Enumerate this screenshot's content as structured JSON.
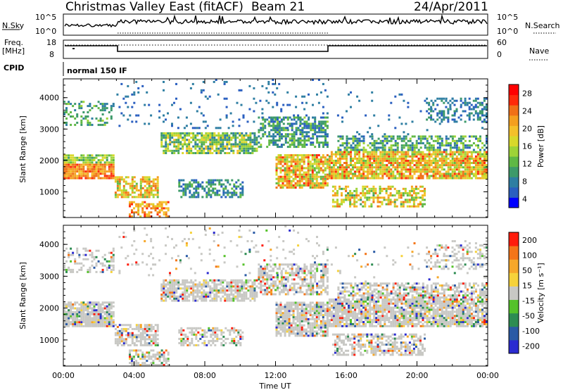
{
  "header": {
    "station": "Christmas Valley East (fitACF)",
    "beam": "Beam 21",
    "date": "24/Apr/2011"
  },
  "strips": {
    "nsky_label": "N.Sky",
    "nsearch_label": "N.Search",
    "nsky_ticks": [
      "10^5",
      "10^0"
    ],
    "nsearch_ticks": [
      "10^5",
      "10^0"
    ],
    "freq_label_1": "Freq.",
    "freq_label_2": "[MHz]",
    "freq_ticks": [
      "18",
      "8"
    ],
    "nave_label": "Nave",
    "nave_ticks": [
      "60",
      "0"
    ],
    "cpid_label": "CPID",
    "cpid_value": "normal 150 IF"
  },
  "chart_data": [
    {
      "type": "heatmap",
      "name": "power",
      "ylabel": "Slant Range [km]",
      "xlabel": "",
      "x_ticks": [
        "00:00",
        "04:00",
        "08:00",
        "12:00",
        "16:00",
        "20:00",
        "00:00"
      ],
      "y_ticks": [
        1000,
        2000,
        3000,
        4000
      ],
      "ylim": [
        180,
        4600
      ],
      "xlim_hours": [
        0,
        24
      ],
      "colorbar": {
        "label": "Power [dB]",
        "ticks": [
          "28",
          "24",
          "20",
          "16",
          "12",
          "8",
          "4"
        ],
        "colors": [
          "#0000ff",
          "#2a5fc0",
          "#2e7ea2",
          "#3d9a6a",
          "#5fb845",
          "#9ed337",
          "#d8d82b",
          "#f4c02a",
          "#f49f1f",
          "#f07017",
          "#ff2a0a",
          "#ff0000"
        ]
      }
    },
    {
      "type": "heatmap",
      "name": "velocity",
      "ylabel": "Slant Range [km]",
      "xlabel": "Time UT",
      "x_ticks": [
        "00:00",
        "04:00",
        "08:00",
        "12:00",
        "16:00",
        "20:00",
        "00:00"
      ],
      "y_ticks": [
        1000,
        2000,
        3000,
        4000
      ],
      "ylim": [
        180,
        4600
      ],
      "xlim_hours": [
        0,
        24
      ],
      "colorbar": {
        "label": "Velocity [m s⁻¹]",
        "ticks": [
          "200",
          "100",
          "50",
          "15",
          "-15",
          "-50",
          "-100",
          "-200"
        ],
        "colors": [
          "#2b2bd0",
          "#2a5aa5",
          "#2d8c52",
          "#55c22a",
          "#c8c8c4",
          "#f6d23a",
          "#f6a72a",
          "#f47518",
          "#ff1c0c"
        ]
      }
    }
  ]
}
